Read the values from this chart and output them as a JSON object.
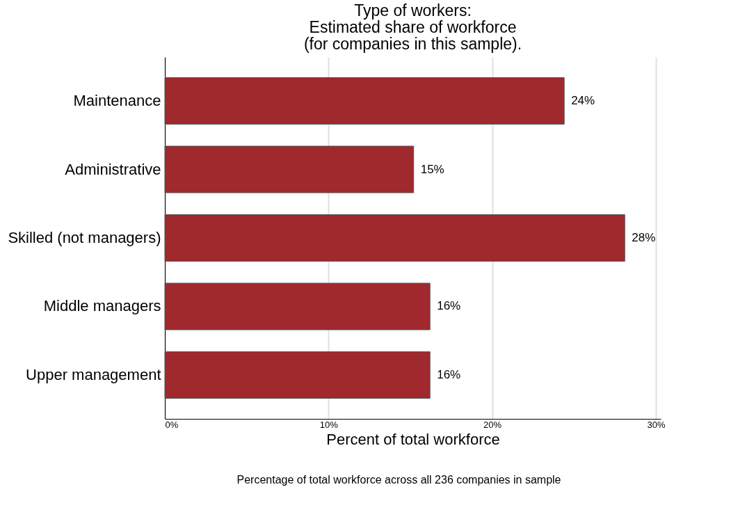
{
  "chart_data": {
    "type": "bar",
    "orientation": "horizontal",
    "title": [
      "Type of workers:",
      "Estimated share of workforce",
      "(for companies in this sample)."
    ],
    "categories": [
      "Maintenance",
      "Administrative",
      "Skilled (not managers)",
      "Middle managers",
      "Upper management"
    ],
    "values": [
      24.4,
      15.2,
      28.1,
      16.2,
      16.2
    ],
    "value_labels": [
      "24%",
      "15%",
      "28%",
      "16%",
      "16%"
    ],
    "color": "#a0292e",
    "xlim": [
      0,
      30.3
    ],
    "xticks": [
      {
        "value": 0,
        "label": "0%"
      },
      {
        "value": 10,
        "label": "10%"
      },
      {
        "value": 20,
        "label": "20%"
      },
      {
        "value": 30,
        "label": "30%"
      }
    ],
    "xlabel": "Percent of total workforce",
    "annotations": [
      "Percentage of total workforce across all 236 companies in sample"
    ],
    "grid": "x"
  }
}
